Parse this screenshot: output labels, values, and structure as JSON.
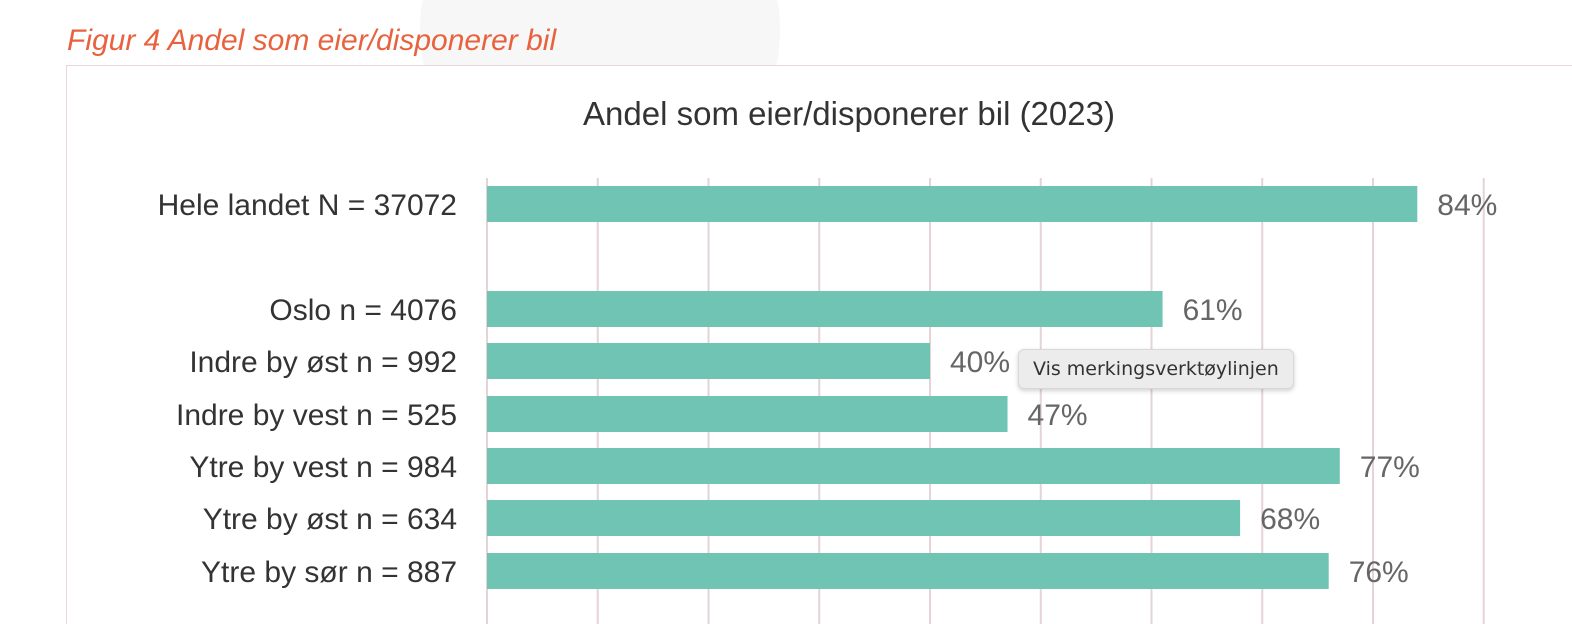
{
  "figure_caption": "Figur 4 Andel som eier/disponerer bil",
  "tooltip": "Vis merkingsverktøylinjen",
  "colors": {
    "bar": "#70c4b3",
    "caption": "#e8623e",
    "gridline": "#e6d3d6"
  },
  "chart_data": {
    "type": "bar",
    "orientation": "horizontal",
    "title": "Andel som eier/disponerer bil (2023)",
    "categories": [
      "Hele landet N = 37072",
      "Oslo n = 4076",
      "Indre by øst n = 992",
      "Indre by vest n = 525",
      "Ytre by vest n = 984",
      "Ytre by øst n = 634",
      "Ytre by sør n = 887"
    ],
    "values": [
      84,
      61,
      40,
      47,
      77,
      68,
      76
    ],
    "value_labels": [
      "84%",
      "61%",
      "40%",
      "47%",
      "77%",
      "68%",
      "76%"
    ],
    "xlim": [
      0,
      90
    ],
    "x_gridline_step": 10,
    "grid": true,
    "legend": "none"
  }
}
